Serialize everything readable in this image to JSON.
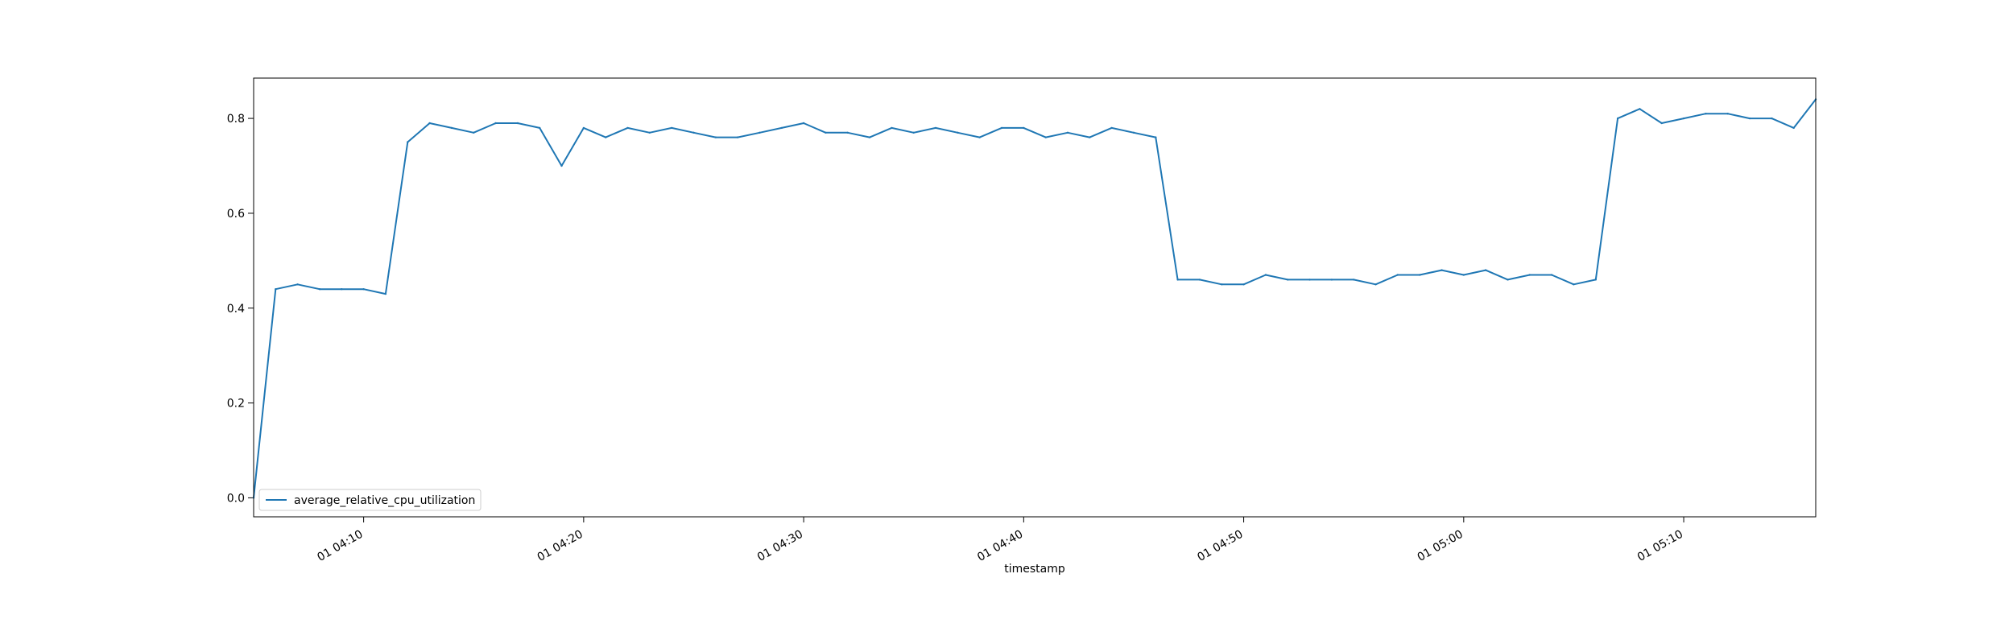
{
  "chart_data": {
    "type": "line",
    "title": "",
    "xlabel": "timestamp",
    "ylabel": "",
    "x_start": "01 04:05",
    "x_end": "01 05:16",
    "xlim": [
      "01 04:05",
      "01 05:16"
    ],
    "ylim": [
      -0.04,
      0.885
    ],
    "x_ticks": [
      "01 04:10",
      "01 04:20",
      "01 04:30",
      "01 04:40",
      "01 04:50",
      "01 05:00",
      "01 05:10"
    ],
    "y_ticks": [
      0.0,
      0.2,
      0.4,
      0.6,
      0.8
    ],
    "y_tick_labels": [
      "0.0",
      "0.2",
      "0.4",
      "0.6",
      "0.8"
    ],
    "grid": false,
    "legend_position": "lower-left",
    "series": [
      {
        "name": "average_relative_cpu_utilization",
        "color": "#1f77b4",
        "x": [
          "01 04:05",
          "01 04:06",
          "01 04:07",
          "01 04:08",
          "01 04:09",
          "01 04:10",
          "01 04:11",
          "01 04:12",
          "01 04:13",
          "01 04:14",
          "01 04:15",
          "01 04:16",
          "01 04:17",
          "01 04:18",
          "01 04:19",
          "01 04:20",
          "01 04:21",
          "01 04:22",
          "01 04:23",
          "01 04:24",
          "01 04:25",
          "01 04:26",
          "01 04:27",
          "01 04:28",
          "01 04:29",
          "01 04:30",
          "01 04:31",
          "01 04:32",
          "01 04:33",
          "01 04:34",
          "01 04:35",
          "01 04:36",
          "01 04:37",
          "01 04:38",
          "01 04:39",
          "01 04:40",
          "01 04:41",
          "01 04:42",
          "01 04:43",
          "01 04:44",
          "01 04:45",
          "01 04:46",
          "01 04:47",
          "01 04:48",
          "01 04:49",
          "01 04:50",
          "01 04:51",
          "01 04:52",
          "01 04:53",
          "01 04:54",
          "01 04:55",
          "01 04:56",
          "01 04:57",
          "01 04:58",
          "01 04:59",
          "01 05:00",
          "01 05:01",
          "01 05:02",
          "01 05:03",
          "01 05:04",
          "01 05:05",
          "01 05:06",
          "01 05:07",
          "01 05:08",
          "01 05:09",
          "01 05:10",
          "01 05:11",
          "01 05:12",
          "01 05:13",
          "01 05:14",
          "01 05:15",
          "01 05:16"
        ],
        "values": [
          0.0,
          0.44,
          0.45,
          0.44,
          0.44,
          0.44,
          0.43,
          0.75,
          0.79,
          0.78,
          0.77,
          0.79,
          0.79,
          0.78,
          0.7,
          0.78,
          0.76,
          0.78,
          0.77,
          0.78,
          0.77,
          0.76,
          0.76,
          0.77,
          0.78,
          0.79,
          0.77,
          0.77,
          0.76,
          0.78,
          0.77,
          0.78,
          0.77,
          0.76,
          0.78,
          0.78,
          0.76,
          0.77,
          0.76,
          0.78,
          0.77,
          0.76,
          0.46,
          0.46,
          0.45,
          0.45,
          0.47,
          0.46,
          0.46,
          0.46,
          0.46,
          0.45,
          0.47,
          0.47,
          0.48,
          0.47,
          0.48,
          0.46,
          0.47,
          0.47,
          0.45,
          0.46,
          0.8,
          0.82,
          0.79,
          0.8,
          0.81,
          0.81,
          0.8,
          0.8,
          0.78,
          0.84
        ]
      }
    ]
  }
}
